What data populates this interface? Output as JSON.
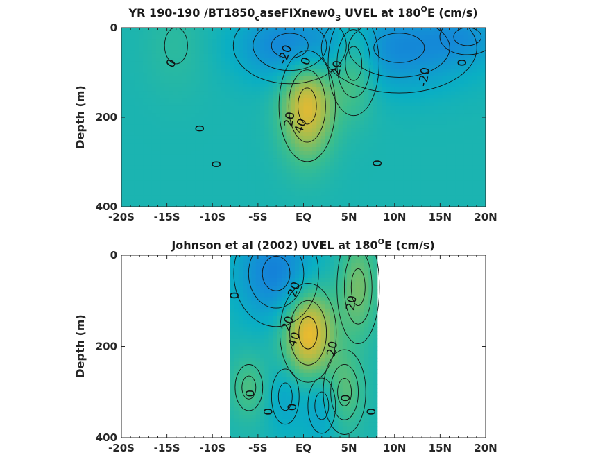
{
  "chart_data": [
    {
      "type": "heatmap",
      "title": "YR 190-190 /BT1850",
      "title_sub": "c",
      "title_mid": "aseFIXnew0",
      "title_sub2": "3",
      "title_tail": " UVEL at 180",
      "title_sup": "O",
      "title_end": "E (cm/s)",
      "ylabel": "Depth (m)",
      "xlim": [
        -20,
        20
      ],
      "ylim": [
        0,
        400
      ],
      "x_ticks": [
        -20,
        -15,
        -10,
        -5,
        0,
        5,
        10,
        15,
        20
      ],
      "x_tick_labels": [
        "-20S",
        "-15S",
        "-10S",
        "-5S",
        "EQ",
        "5N",
        "10N",
        "15N",
        "20N"
      ],
      "y_ticks": [
        0,
        200,
        400
      ],
      "y_tick_labels": [
        "0",
        "200",
        "400"
      ],
      "features": [
        {
          "kind": "max",
          "lat": 0.4,
          "depth": 175,
          "value": 45,
          "rx": 2.0,
          "ry": 80
        },
        {
          "kind": "max",
          "lat": 5.5,
          "depth": 80,
          "value": 25,
          "rx": 1.8,
          "ry": 75
        },
        {
          "kind": "min",
          "lat": -1.5,
          "depth": 40,
          "value": -28,
          "rx": 4.0,
          "ry": 55
        },
        {
          "kind": "min",
          "lat": 10.5,
          "depth": 45,
          "value": -25,
          "rx": 5.5,
          "ry": 65
        },
        {
          "kind": "min",
          "lat": 18.0,
          "depth": 20,
          "value": -14,
          "rx": 3.0,
          "ry": 40
        },
        {
          "kind": "max",
          "lat": -14.0,
          "depth": 40,
          "value": 6,
          "rx": 2.5,
          "ry": 80
        }
      ],
      "contour_labels": [
        {
          "text": "-20",
          "lat": -2.0,
          "depth": 60,
          "angle": -70
        },
        {
          "text": "0",
          "lat": 0.3,
          "depth": 75,
          "angle": -70
        },
        {
          "text": "20",
          "lat": 3.7,
          "depth": 90,
          "angle": -80
        },
        {
          "text": "20",
          "lat": -1.5,
          "depth": 205,
          "angle": -80
        },
        {
          "text": "40",
          "lat": -0.3,
          "depth": 220,
          "angle": -70
        },
        {
          "text": "-20",
          "lat": 13.3,
          "depth": 110,
          "angle": -80
        },
        {
          "text": "0",
          "lat": 17.5,
          "depth": 78,
          "angle": -90
        },
        {
          "text": "0",
          "lat": -14.5,
          "depth": 80,
          "angle": -60
        },
        {
          "text": "0",
          "lat": -11.3,
          "depth": 225,
          "angle": -90
        },
        {
          "text": "0",
          "lat": -9.5,
          "depth": 305,
          "angle": -90
        },
        {
          "text": "0",
          "lat": 8.2,
          "depth": 303,
          "angle": -90
        }
      ]
    },
    {
      "type": "heatmap",
      "title": "Johnson et al (2002) UVEL at 180",
      "title_sup": "O",
      "title_end": "E (cm/s)",
      "ylabel": "Depth (m)",
      "xlim": [
        -20,
        20
      ],
      "ylim": [
        0,
        400
      ],
      "data_lat_range": [
        -8,
        8
      ],
      "x_ticks": [
        -20,
        -15,
        -10,
        -5,
        0,
        5,
        10,
        15,
        20
      ],
      "x_tick_labels": [
        "-20S",
        "-15S",
        "-10S",
        "-5S",
        "EQ",
        "5N",
        "10N",
        "15N",
        "20N"
      ],
      "y_ticks": [
        0,
        200,
        400
      ],
      "y_tick_labels": [
        "0",
        "200",
        "400"
      ],
      "features": [
        {
          "kind": "max",
          "lat": 0.5,
          "depth": 170,
          "value": 50,
          "rx": 2.0,
          "ry": 70
        },
        {
          "kind": "max",
          "lat": 6.0,
          "depth": 70,
          "value": 22,
          "rx": 1.5,
          "ry": 80
        },
        {
          "kind": "min",
          "lat": -3.0,
          "depth": 40,
          "value": -30,
          "rx": 3.0,
          "ry": 75
        },
        {
          "kind": "max",
          "lat": 4.5,
          "depth": 300,
          "value": 18,
          "rx": 1.5,
          "ry": 60
        },
        {
          "kind": "max",
          "lat": -6.0,
          "depth": 290,
          "value": 15,
          "rx": 1.5,
          "ry": 50
        },
        {
          "kind": "min",
          "lat": 2.0,
          "depth": 330,
          "value": -14,
          "rx": 1.5,
          "ry": 60
        },
        {
          "kind": "min",
          "lat": -2.0,
          "depth": 310,
          "value": -12,
          "rx": 1.5,
          "ry": 60
        }
      ],
      "contour_labels": [
        {
          "text": "20",
          "lat": -1.0,
          "depth": 75,
          "angle": -70
        },
        {
          "text": "20",
          "lat": 5.3,
          "depth": 105,
          "angle": -80
        },
        {
          "text": "0",
          "lat": -7.5,
          "depth": 88,
          "angle": -90
        },
        {
          "text": "20",
          "lat": -1.7,
          "depth": 150,
          "angle": -70
        },
        {
          "text": "40",
          "lat": -1.0,
          "depth": 185,
          "angle": -70
        },
        {
          "text": "20",
          "lat": 3.2,
          "depth": 205,
          "angle": -80
        },
        {
          "text": "0",
          "lat": -5.8,
          "depth": 303,
          "angle": -90
        },
        {
          "text": "0",
          "lat": -3.8,
          "depth": 343,
          "angle": -90
        },
        {
          "text": "0",
          "lat": -1.2,
          "depth": 333,
          "angle": -90
        },
        {
          "text": "0",
          "lat": 4.7,
          "depth": 313,
          "angle": -90
        },
        {
          "text": "0",
          "lat": 7.5,
          "depth": 343,
          "angle": -90
        }
      ]
    }
  ]
}
